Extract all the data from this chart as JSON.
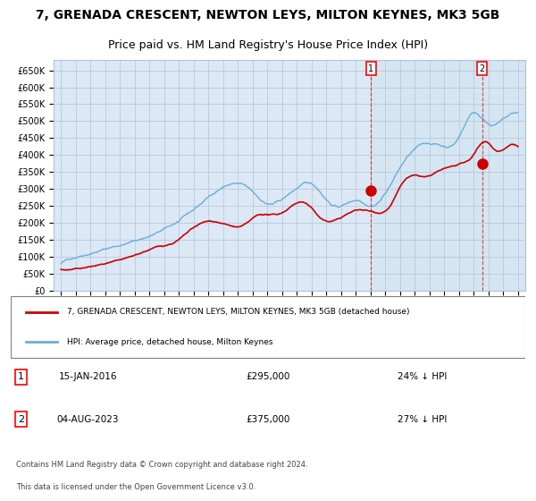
{
  "title": "7, GRENADA CRESCENT, NEWTON LEYS, MILTON KEYNES, MK3 5GB",
  "subtitle": "Price paid vs. HM Land Registry's House Price Index (HPI)",
  "title_fontsize": 10,
  "subtitle_fontsize": 9,
  "bg_color": "#e8f0f8",
  "plot_bg_color": "#dce8f5",
  "grid_color": "#b0c4d8",
  "hpi_color": "#6baed6",
  "price_color": "#cc0000",
  "ylim": [
    0,
    680000
  ],
  "yticks": [
    0,
    50000,
    100000,
    150000,
    200000,
    250000,
    300000,
    350000,
    400000,
    450000,
    500000,
    550000,
    600000,
    650000
  ],
  "xstart_year": 1995,
  "xend_year": 2026,
  "sale1_date": "15-JAN-2016",
  "sale1_price": 295000,
  "sale1_hpi_diff": "24% ↓ HPI",
  "sale1_x": 2016.04,
  "sale2_date": "04-AUG-2023",
  "sale2_price": 375000,
  "sale2_hpi_diff": "27% ↓ HPI",
  "sale2_x": 2023.58,
  "legend_label1": "7, GRENADA CRESCENT, NEWTON LEYS, MILTON KEYNES, MK3 5GB (detached house)",
  "legend_label2": "HPI: Average price, detached house, Milton Keynes",
  "footer1": "Contains HM Land Registry data © Crown copyright and database right 2024.",
  "footer2": "This data is licensed under the Open Government Licence v3.0."
}
